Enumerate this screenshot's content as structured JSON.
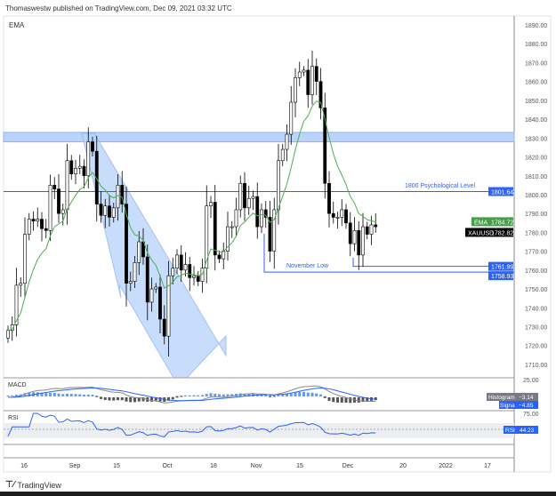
{
  "header": {
    "publish_text": "Thomaswestw published on TradingView.com, Dec 09, 2021 03:32 UTC"
  },
  "footer": {
    "brand": "TradingView"
  },
  "chart_data": {
    "type": "candlestick",
    "symbol": "XAUUSD",
    "indicator_label": "EMA",
    "price_ticks": [
      1890,
      1880,
      1870,
      1860,
      1850,
      1840,
      1830,
      1820,
      1810,
      1800,
      1790,
      1780,
      1770,
      1760,
      1750,
      1740,
      1730,
      1720,
      1710
    ],
    "price_tick_labels": [
      "1890.00",
      "1880.00",
      "1870.00",
      "1860.00",
      "1850.00",
      "1840.00",
      "1830.00",
      "1820.00",
      "1810.00",
      "1800.00",
      "1790.00",
      "1780.00",
      "1770.00",
      "1760.00",
      "1750.00",
      "1740.00",
      "1730.00",
      "1720.00",
      "1710.00"
    ],
    "ylim": [
      1705,
      1893
    ],
    "x_tick_labels": [
      "16",
      "Sep",
      "15",
      "Oct",
      "18",
      "Nov",
      "15",
      "Dec",
      "20",
      "2022",
      "17"
    ],
    "closes": [
      1728,
      1731,
      1752,
      1753,
      1779,
      1787,
      1786,
      1787,
      1782,
      1781,
      1805,
      1803,
      1790,
      1792,
      1818,
      1811,
      1814,
      1815,
      1810,
      1828,
      1823,
      1795,
      1789,
      1794,
      1788,
      1793,
      1805,
      1795,
      1753,
      1754,
      1764,
      1775,
      1767,
      1743,
      1750,
      1751,
      1734,
      1725,
      1757,
      1761,
      1768,
      1760,
      1763,
      1756,
      1757,
      1754,
      1761,
      1794,
      1796,
      1768,
      1766,
      1770,
      1783,
      1783,
      1792,
      1806,
      1793,
      1798,
      1799,
      1783,
      1792,
      1788,
      1770,
      1792,
      1818,
      1824,
      1832,
      1849,
      1862,
      1865,
      1866,
      1853,
      1868,
      1860,
      1846,
      1806,
      1790,
      1788,
      1788,
      1792,
      1785,
      1774,
      1781,
      1768,
      1783,
      1779,
      1784,
      1783
    ],
    "annotations": [
      {
        "text": "1800 Psychological Level",
        "price": 1801.64,
        "label": "1801.64"
      },
      {
        "text": "November Low",
        "price": 1758.93,
        "label": "1758.93"
      },
      {
        "price": 1761.99,
        "label": "1761.99"
      }
    ],
    "zone": [
      1828,
      1833
    ],
    "last": {
      "ema_label": "EMA",
      "ema": "1784.72",
      "symbol_label": "XAUUSD",
      "price": "1782.82"
    },
    "macd": {
      "title": "MACD",
      "axis_label": "25.00",
      "histogram_label": "Histogram",
      "histogram": "−3.14",
      "signal_label": "Signal",
      "signal": "−4.85"
    },
    "rsi": {
      "title": "RSI",
      "axis_label": "75.00",
      "label": "RSI",
      "value": "44.23"
    },
    "colors": {
      "up": "#ffffff",
      "down": "#000000",
      "ema": "#4caf50",
      "blue": "#2962ff",
      "zone": "#bbd4fb"
    }
  }
}
